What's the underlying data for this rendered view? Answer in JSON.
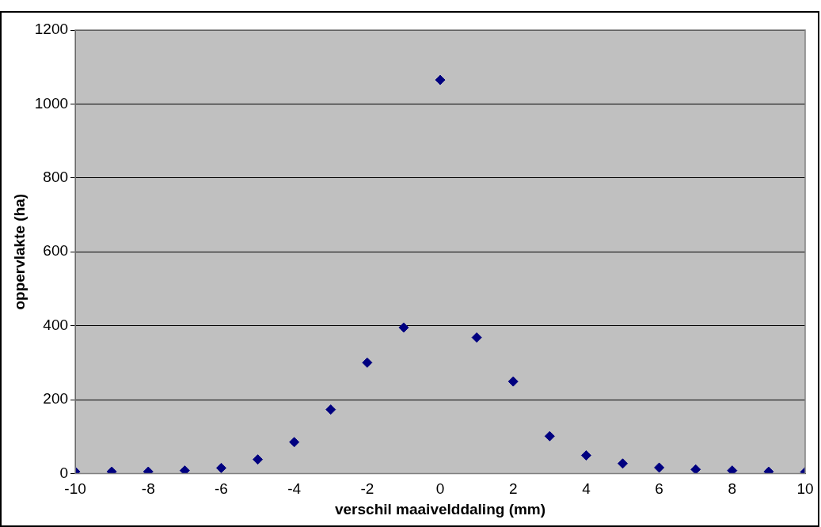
{
  "chart_data": {
    "type": "scatter",
    "xlabel": "verschil maaivelddaling (mm)",
    "ylabel": "oppervlakte (ha)",
    "x": [
      -10,
      -9,
      -8,
      -7,
      -6,
      -5,
      -4,
      -3,
      -2,
      -1,
      0,
      1,
      2,
      3,
      4,
      5,
      6,
      7,
      8,
      9,
      10
    ],
    "series": [
      {
        "color": "#000080",
        "values": [
          5,
          5,
          5,
          8,
          15,
          38,
          85,
          173,
          300,
          395,
          1065,
          368,
          249,
          101,
          49,
          27,
          16,
          11,
          8,
          5,
          4
        ]
      }
    ],
    "xlim": [
      -10,
      10
    ],
    "xticks": [
      -10,
      -8,
      -6,
      -4,
      -2,
      0,
      2,
      4,
      6,
      8,
      10
    ],
    "ylim": [
      0,
      1200
    ],
    "yticks": [
      0,
      200,
      400,
      600,
      800,
      1000,
      1200
    ],
    "grid": "y",
    "marker": "diamond",
    "legend": false
  }
}
